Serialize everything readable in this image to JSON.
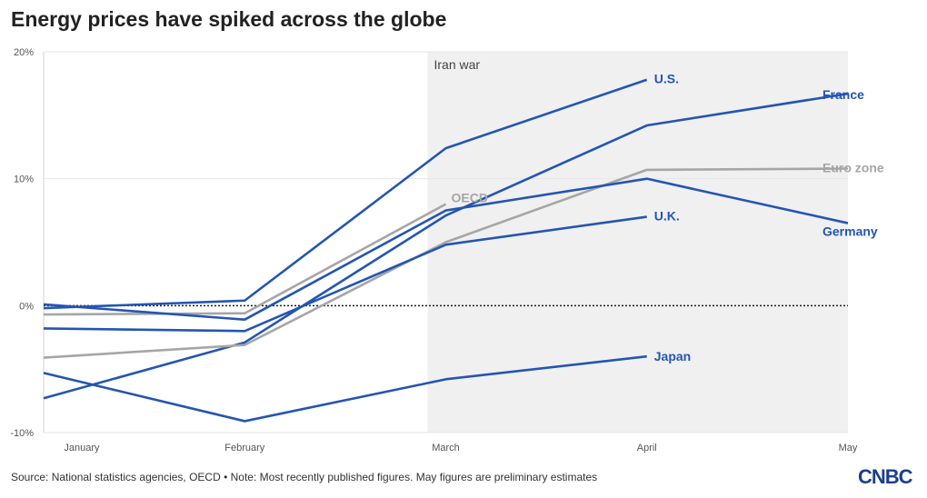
{
  "title": "Energy prices have spiked across the globe",
  "footer": {
    "source": "Source: National statistics agencies, OECD • Note: Most recently published figures. May figures are preliminary estimates",
    "logo": "CNBC"
  },
  "colors": {
    "blue": "#2455b3",
    "gray": "#a6a6a6",
    "shade": "#f0f0f0",
    "grid": "#e6e6e6"
  },
  "chart_data": {
    "type": "line",
    "title": "Energy prices have spiked across the globe",
    "xlabel": "",
    "ylabel": "",
    "x": [
      "January",
      "February",
      "March",
      "April",
      "May"
    ],
    "ylim": [
      -10,
      20
    ],
    "yticks": [
      {
        "value": 20,
        "label": "20%"
      },
      {
        "value": 10,
        "label": "10%"
      },
      {
        "value": 0,
        "label": "0%"
      },
      {
        "value": -10,
        "label": "-10%"
      }
    ],
    "grid": true,
    "zero_line": "dotted",
    "shaded_region": {
      "from": 2,
      "to": 4,
      "label": "Iran war"
    },
    "series": [
      {
        "name": "U.S.",
        "color": "blue",
        "values": [
          -0.2,
          0.4,
          12.4,
          17.8,
          null
        ]
      },
      {
        "name": "France",
        "color": "blue",
        "values": [
          -7.3,
          -2.9,
          7.1,
          14.2,
          16.7
        ]
      },
      {
        "name": "Euro zone",
        "color": "gray",
        "values": [
          -4.1,
          -3.1,
          5.0,
          10.7,
          10.8
        ]
      },
      {
        "name": "OECD",
        "color": "gray",
        "values": [
          -0.7,
          -0.6,
          8.0,
          null,
          null
        ]
      },
      {
        "name": "Germany",
        "color": "blue",
        "values": [
          0.1,
          -1.1,
          7.5,
          10.0,
          6.5
        ]
      },
      {
        "name": "U.K.",
        "color": "blue",
        "values": [
          -1.8,
          -2.0,
          4.8,
          7.0,
          null
        ]
      },
      {
        "name": "Japan",
        "color": "blue",
        "values": [
          -5.3,
          -9.1,
          -5.8,
          -4.0,
          null
        ]
      }
    ],
    "labels": [
      {
        "text": "U.S.",
        "series": 0,
        "point": 3
      },
      {
        "text": "France",
        "series": 1,
        "point": 4
      },
      {
        "text": "Euro zone",
        "series": 2,
        "point": 4
      },
      {
        "text": "OECD",
        "series": 3,
        "point": 2
      },
      {
        "text": "Germany",
        "series": 4,
        "point": 4
      },
      {
        "text": "U.K.",
        "series": 5,
        "point": 3
      },
      {
        "text": "Japan",
        "series": 6,
        "point": 3
      }
    ]
  }
}
